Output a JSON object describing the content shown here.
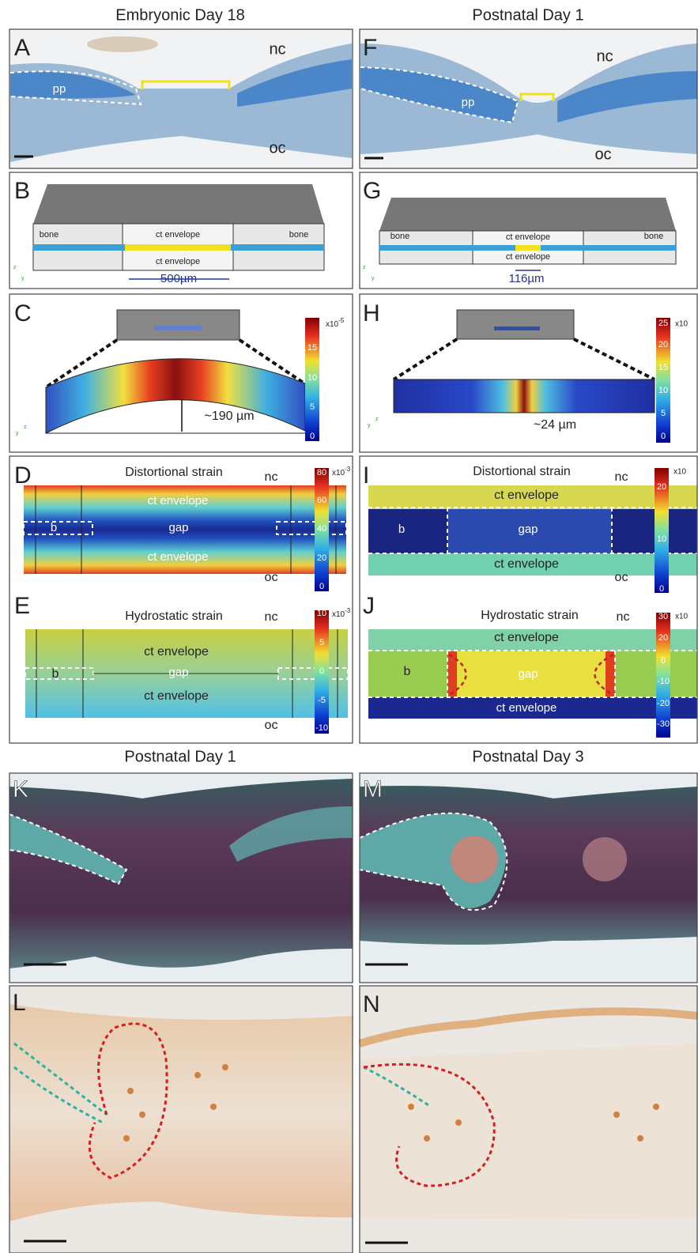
{
  "headers": {
    "top_left": "Embryonic Day 18",
    "top_right": "Postnatal Day 1",
    "bottom_left": "Postnatal Day 1",
    "bottom_right": "Postnatal Day 3"
  },
  "panels": {
    "A": {
      "letter": "A",
      "nc": "nc",
      "pp": "pp",
      "oc": "oc"
    },
    "B": {
      "letter": "B",
      "bone_left": "bone",
      "bone_right": "bone",
      "ct_top": "ct envelope",
      "ct_bottom": "ct envelope",
      "scale": "500µm",
      "axes": {
        "z": "z",
        "y": "y"
      }
    },
    "C": {
      "letter": "C",
      "deflection": "~190 µm",
      "axes": {
        "z": "z",
        "y": "y"
      },
      "colorbar": {
        "base": "x10",
        "exp": "-5",
        "ticks": [
          0,
          5,
          10,
          15
        ]
      }
    },
    "D": {
      "letter": "D",
      "title": "Distortional strain",
      "nc": "nc",
      "ct_top": "ct envelope",
      "b": "b",
      "gap": "gap",
      "ct_bottom": "ct envelope",
      "oc": "oc",
      "colorbar": {
        "base": "x10",
        "exp": "-3",
        "ticks": [
          0,
          20,
          40,
          60,
          80
        ]
      }
    },
    "E": {
      "letter": "E",
      "title": "Hydrostatic strain",
      "nc": "nc",
      "ct_top": "ct envelope",
      "b": "b",
      "gap": "gap",
      "ct_bottom": "ct envelope",
      "oc": "oc",
      "colorbar": {
        "base": "x10",
        "exp": "-3",
        "ticks": [
          -10,
          -5,
          0,
          5,
          10
        ]
      }
    },
    "F": {
      "letter": "F",
      "nc": "nc",
      "pp": "pp",
      "oc": "oc"
    },
    "G": {
      "letter": "G",
      "bone_left": "bone",
      "bone_right": "bone",
      "ct_top": "ct envelope",
      "ct_bottom": "ct envelope",
      "scale": "116µm",
      "axes": {
        "z": "z",
        "y": "y"
      }
    },
    "H": {
      "letter": "H",
      "deflection": "~24 µm",
      "axes": {
        "z": "z",
        "y": "y"
      },
      "colorbar": {
        "base": "x10",
        "ticks": [
          0,
          5,
          10,
          15,
          20,
          25
        ]
      }
    },
    "I": {
      "letter": "I",
      "title": "Distortional strain",
      "nc": "nc",
      "ct_top": "ct envelope",
      "b": "b",
      "gap": "gap",
      "ct_bottom": "ct envelope",
      "oc": "oc",
      "colorbar": {
        "base": "x10",
        "ticks": [
          0,
          10,
          20
        ]
      }
    },
    "J": {
      "letter": "J",
      "title": "Hydrostatic strain",
      "nc": "nc",
      "ct_top": "ct envelope",
      "b": "b",
      "gap": "gap",
      "ct_bottom": "ct envelope",
      "colorbar": {
        "base": "x10",
        "ticks": [
          -30,
          -20,
          -10,
          0,
          20,
          30
        ]
      }
    },
    "K": {
      "letter": "K"
    },
    "L": {
      "letter": "L"
    },
    "M": {
      "letter": "M"
    },
    "N": {
      "letter": "N"
    }
  }
}
